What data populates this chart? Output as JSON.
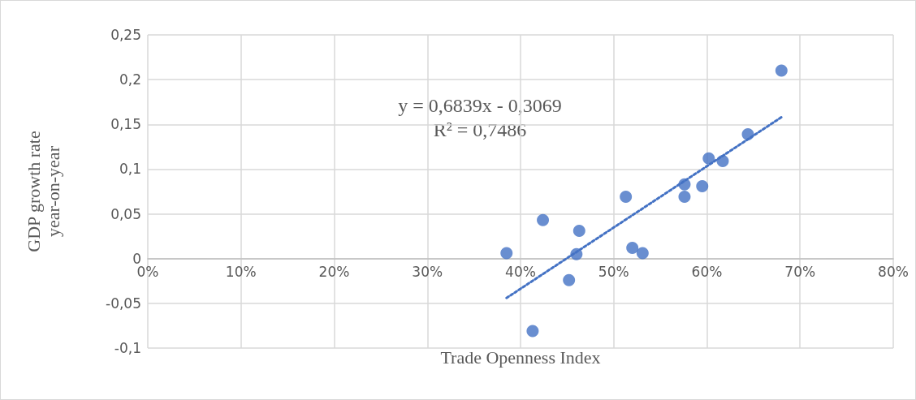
{
  "chart_data": {
    "type": "scatter",
    "xlabel": "Trade Openness Index",
    "ylabel": "GDP growth rate year-on-year",
    "annotations": [
      "y = 0,6839x - 0,3069",
      "R² = 0,7486"
    ],
    "series": [
      {
        "color": "#4472c4",
        "marker": "circle",
        "x": [
          0.385,
          0.424,
          0.413,
          0.452,
          0.46,
          0.463,
          0.513,
          0.52,
          0.531,
          0.576,
          0.576,
          0.595,
          0.602,
          0.617,
          0.644,
          0.68
        ],
        "values": [
          0.006,
          0.043,
          -0.081,
          -0.024,
          0.005,
          0.031,
          0.069,
          0.012,
          0.006,
          0.083,
          0.069,
          0.081,
          0.112,
          0.109,
          0.139,
          0.21
        ]
      },
      {
        "type": "line",
        "color": "#4472c4",
        "line_style": "dotted",
        "marker": "none",
        "x": [
          0.385,
          0.68
        ],
        "values": [
          -0.044,
          0.158
        ]
      }
    ],
    "xlim": [
      0,
      0.8
    ],
    "xticks": [
      {
        "value": 0,
        "label": "0%"
      },
      {
        "value": 0.1,
        "label": "10%"
      },
      {
        "value": 0.2,
        "label": "20%"
      },
      {
        "value": 0.3,
        "label": "30%"
      },
      {
        "value": 0.4,
        "label": "40%"
      },
      {
        "value": 0.5,
        "label": "50%"
      },
      {
        "value": 0.6,
        "label": "60%"
      },
      {
        "value": 0.7,
        "label": "70%"
      },
      {
        "value": 0.8,
        "label": "80%"
      }
    ],
    "ylim": [
      -0.1,
      0.25
    ],
    "yticks": [
      {
        "value": -0.1,
        "label": "-0,1"
      },
      {
        "value": -0.05,
        "label": "-0,05"
      },
      {
        "value": 0,
        "label": "0"
      },
      {
        "value": 0.05,
        "label": "0,05"
      },
      {
        "value": 0.1,
        "label": "0,1"
      },
      {
        "value": 0.15,
        "label": "0,15"
      },
      {
        "value": 0.2,
        "label": "0,2"
      },
      {
        "value": 0.25,
        "label": "0,25"
      }
    ],
    "grid": true
  }
}
